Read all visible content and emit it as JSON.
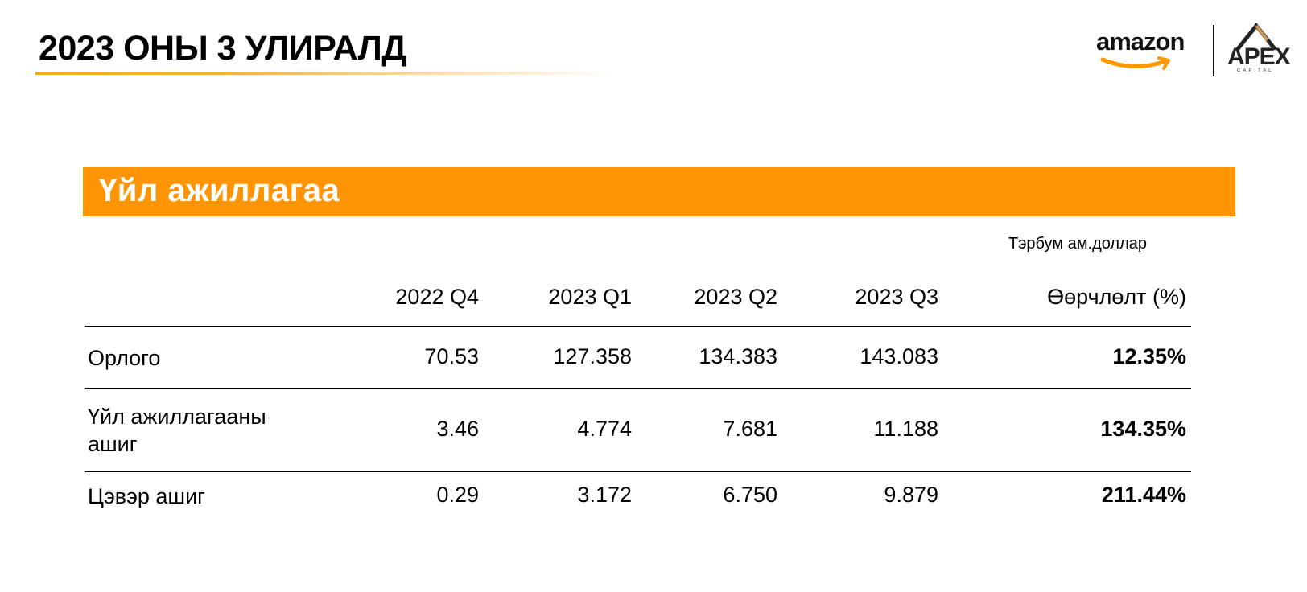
{
  "page": {
    "title": "2023 ОНЫ 3 УЛИРАЛД"
  },
  "logos": {
    "amazon": "amazon",
    "apex": "APEX",
    "apex_sub": "CAPITAL"
  },
  "section": {
    "title": "Үйл ажиллагаа",
    "units": "Тэрбум ам.доллар"
  },
  "table": {
    "headers": [
      "2022 Q4",
      "2023  Q1",
      "2023 Q2",
      "2023  Q3",
      "Өөрчлөлт (%)"
    ],
    "rows": [
      {
        "label_line1": "Орлого",
        "label_line2": "",
        "values": [
          "70.53",
          "127.358",
          "134.383",
          "143.083",
          "12.35%"
        ]
      },
      {
        "label_line1": "Үйл ажиллагааны",
        "label_line2": "ашиг",
        "values": [
          "3.46",
          "4.774",
          "7.681",
          "11.188",
          "134.35%"
        ]
      },
      {
        "label_line1": "Цэвэр ашиг",
        "label_line2": "",
        "values": [
          "0.29",
          "3.172",
          "6.750",
          "9.879",
          "211.44%"
        ]
      }
    ]
  },
  "colors": {
    "accent": "#ff9504",
    "underline": "#f7a821",
    "amazon_smile": "#ff9900"
  }
}
